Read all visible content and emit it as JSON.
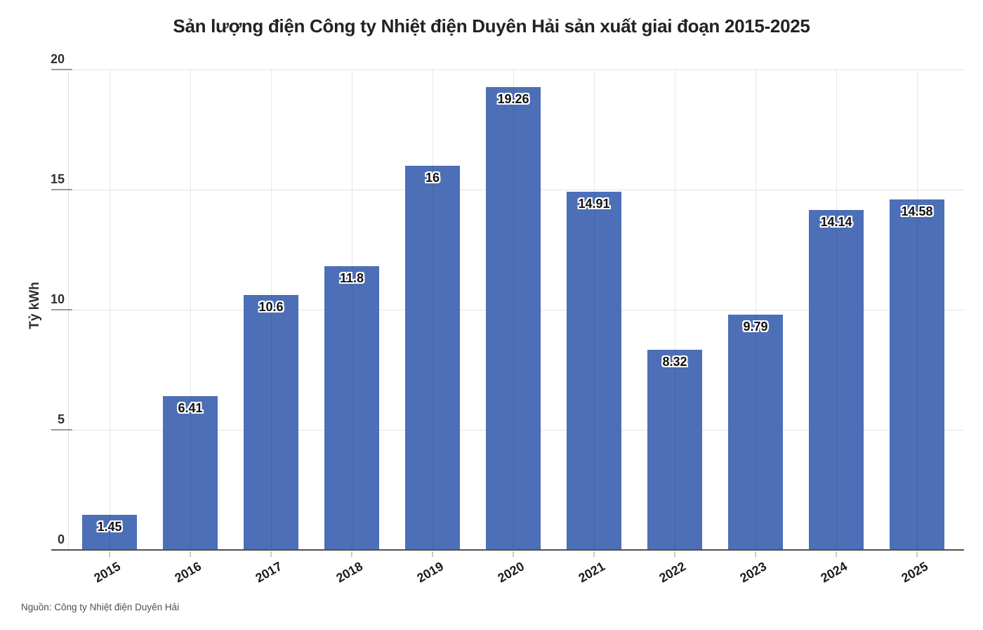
{
  "chart_data": {
    "type": "bar",
    "title": "Sản lượng điện Công ty Nhiệt điện Duyên Hải sản xuất giai đoạn 2015-2025",
    "ylabel": "Tỷ kWh",
    "xlabel": "",
    "source": "Nguồn: Công ty Nhiệt điện Duyên Hải",
    "categories": [
      "2015",
      "2016",
      "2017",
      "2018",
      "2019",
      "2020",
      "2021",
      "2022",
      "2023",
      "2024",
      "2025"
    ],
    "values": [
      1.45,
      6.41,
      10.6,
      11.8,
      16,
      19.26,
      14.91,
      8.32,
      9.79,
      14.14,
      14.58
    ],
    "value_labels": [
      "1.45",
      "6.41",
      "10.6",
      "11.8",
      "16",
      "19.26",
      "14.91",
      "8.32",
      "9.79",
      "14.14",
      "14.58"
    ],
    "ylim": [
      0,
      20
    ],
    "yticks": [
      0,
      5,
      10,
      15,
      20
    ],
    "ytick_labels": [
      "0",
      "5",
      "10",
      "15",
      "20"
    ],
    "grid": "both",
    "legend": "none",
    "x_tick_rotation_deg": -30,
    "bar_color": "#4c6fb7",
    "gridline_color": "#e3e3e3",
    "axis_line_color": "#515151",
    "value_label_color": "#111111",
    "value_label_halo_color": "#ffffff",
    "title_color": "#222222",
    "source_color": "#4f4f4f"
  }
}
